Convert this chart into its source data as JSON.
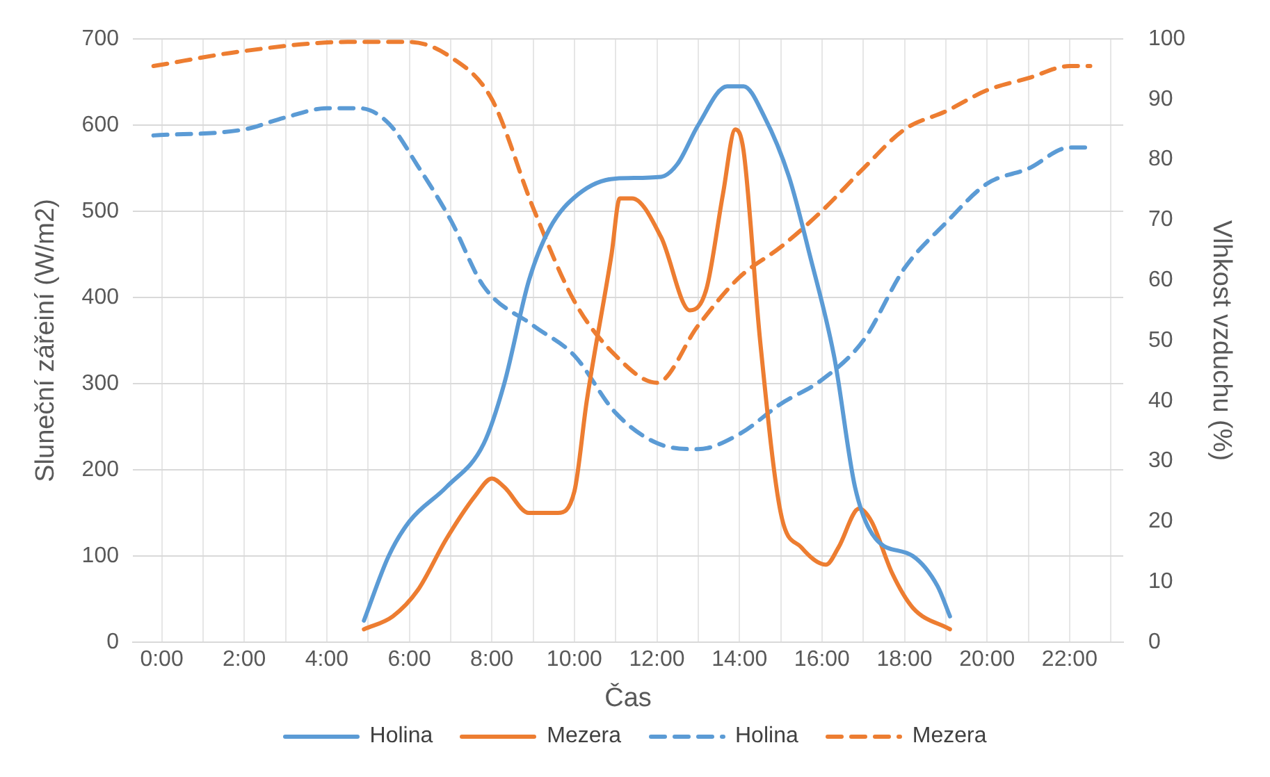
{
  "chart_data": {
    "type": "line",
    "xlabel": "Čas",
    "ylabel": "Sluneční zářeiní (W/m2)",
    "y2label": "Vlhkost vzduchu (%)",
    "xlim": [
      -0.7,
      23.3
    ],
    "xticks": [
      {
        "value": 0,
        "label": "0:00"
      },
      {
        "value": 1,
        "label": null
      },
      {
        "value": 2,
        "label": "2:00"
      },
      {
        "value": 3,
        "label": null
      },
      {
        "value": 4,
        "label": "4:00"
      },
      {
        "value": 5,
        "label": null
      },
      {
        "value": 6,
        "label": "6:00"
      },
      {
        "value": 7,
        "label": null
      },
      {
        "value": 8,
        "label": "8:00"
      },
      {
        "value": 9,
        "label": null
      },
      {
        "value": 10,
        "label": "10:00"
      },
      {
        "value": 11,
        "label": null
      },
      {
        "value": 12,
        "label": "12:00"
      },
      {
        "value": 13,
        "label": null
      },
      {
        "value": 14,
        "label": "14:00"
      },
      {
        "value": 15,
        "label": null
      },
      {
        "value": 16,
        "label": "16:00"
      },
      {
        "value": 17,
        "label": null
      },
      {
        "value": 18,
        "label": "18:00"
      },
      {
        "value": 19,
        "label": null
      },
      {
        "value": 20,
        "label": "20:00"
      },
      {
        "value": 21,
        "label": null
      },
      {
        "value": 22,
        "label": "22:00"
      },
      {
        "value": 23,
        "label": null
      }
    ],
    "ylim": [
      0,
      700
    ],
    "yticks": [
      0,
      100,
      200,
      300,
      400,
      500,
      600,
      700
    ],
    "y2lim": [
      0,
      100
    ],
    "y2ticks": [
      0,
      10,
      20,
      30,
      40,
      50,
      60,
      70,
      80,
      90,
      100
    ],
    "grid": true,
    "legend": "bottom",
    "marker": "none",
    "series": [
      {
        "name": "Holina",
        "color": "#5b9bd5",
        "line_style": "solid",
        "x": [
          4.9,
          5.5,
          6.0,
          6.9,
          7.8,
          8.3,
          8.9,
          9.4,
          10.1,
          11.0,
          12.1,
          12.5,
          13.0,
          13.7,
          14.1,
          14.6,
          15.2,
          15.7,
          16.3,
          16.8,
          17.3,
          18.2,
          18.8,
          19.1
        ],
        "values": [
          25,
          100,
          140,
          180,
          230,
          300,
          420,
          480,
          520,
          538,
          540,
          555,
          600,
          645,
          645,
          610,
          540,
          450,
          330,
          180,
          120,
          100,
          65,
          30
        ]
      },
      {
        "name": "Mezera",
        "color": "#ed7d31",
        "line_style": "solid",
        "x": [
          4.9,
          5.6,
          6.2,
          6.9,
          7.6,
          8.0,
          8.3,
          8.9,
          9.6,
          10.0,
          10.3,
          10.9,
          11.1,
          11.4,
          12.1,
          12.8,
          13.2,
          13.6,
          13.9,
          14.1,
          14.5,
          15.0,
          15.5,
          16.1,
          16.4,
          16.9,
          17.2,
          17.7,
          18.2,
          19.1
        ],
        "values": [
          15,
          30,
          60,
          120,
          170,
          190,
          180,
          150,
          150,
          175,
          280,
          450,
          515,
          515,
          470,
          385,
          410,
          520,
          595,
          570,
          350,
          150,
          110,
          90,
          110,
          155,
          140,
          80,
          40,
          15
        ]
      },
      {
        "name": "Holina",
        "color": "#5b9bd5",
        "line_style": "dashed",
        "axis": "y2",
        "x": [
          -0.2,
          2,
          3,
          4,
          4.8,
          5.5,
          6.2,
          7,
          7.8,
          9,
          10,
          11,
          12,
          13,
          14,
          15,
          16,
          17,
          18,
          19,
          20,
          21,
          22,
          22.5
        ],
        "values": [
          84,
          85,
          87,
          88.5,
          88.5,
          86,
          79,
          70,
          59,
          52.5,
          47.5,
          38,
          33,
          32,
          34.5,
          39.5,
          43.5,
          50,
          62,
          69.5,
          76,
          78.5,
          82,
          82
        ]
      },
      {
        "name": "Mezera",
        "color": "#ed7d31",
        "line_style": "dashed",
        "axis": "y2",
        "x": [
          -0.2,
          2,
          4.5,
          6,
          7,
          8,
          9,
          10,
          11,
          12,
          13,
          14,
          15,
          16,
          17,
          18,
          19,
          20,
          21,
          22,
          22.5
        ],
        "values": [
          95.5,
          98,
          99.5,
          99.5,
          97,
          90,
          72,
          56.5,
          47.5,
          43,
          52.5,
          60.5,
          65.5,
          71.5,
          78.5,
          85,
          88,
          91.5,
          93.5,
          95.5,
          95.5
        ]
      }
    ]
  }
}
